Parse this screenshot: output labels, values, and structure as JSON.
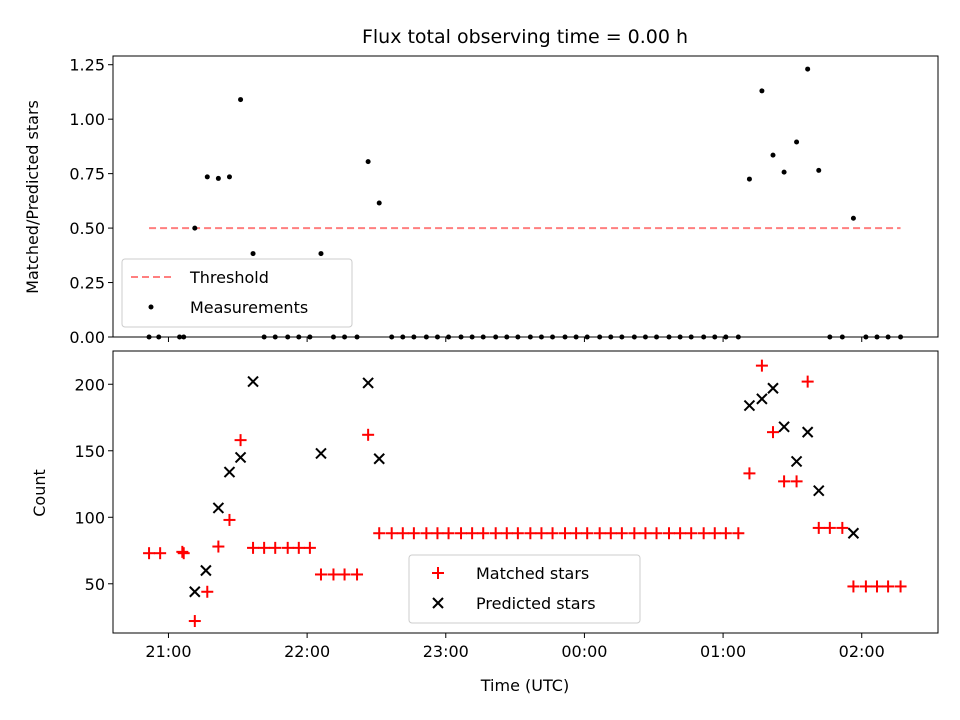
{
  "title": "Flux total observing time = 0.00 h",
  "colors": {
    "threshold": "#ff7f7f",
    "matched": "#ff0000",
    "predicted": "#000000",
    "measurements": "#000000"
  },
  "chart_data": [
    {
      "type": "scatter",
      "ylabel": "Matched/Predicted stars",
      "ylim": [
        0,
        1.29
      ],
      "yticks": [
        "0.00",
        "0.25",
        "0.50",
        "0.75",
        "1.00",
        "1.25"
      ],
      "yticks_values": [
        0,
        0.25,
        0.5,
        0.75,
        1.0,
        1.25
      ],
      "xticks_values": [
        21,
        22,
        23,
        24,
        25,
        26
      ],
      "xlim": [
        20.6,
        26.55
      ],
      "legend": {
        "placement": "lower-left",
        "entries": [
          "Threshold",
          "Measurements"
        ]
      },
      "threshold": {
        "name": "Threshold",
        "value": 0.5,
        "x": [
          20.86,
          26.28
        ]
      },
      "series": [
        {
          "name": "Measurements",
          "x": [
            20.86,
            20.93,
            21.08,
            21.11,
            21.19,
            21.28,
            21.36,
            21.44,
            21.52,
            21.61,
            21.69,
            21.77,
            21.86,
            21.94,
            22.02,
            22.1,
            22.19,
            22.27,
            22.36,
            22.44,
            22.52,
            22.61,
            22.69,
            22.77,
            22.86,
            22.94,
            23.02,
            23.11,
            23.19,
            23.27,
            23.36,
            23.44,
            23.52,
            23.61,
            23.69,
            23.77,
            23.86,
            23.94,
            24.02,
            24.11,
            24.19,
            24.27,
            24.36,
            24.44,
            24.52,
            24.61,
            24.69,
            24.77,
            24.86,
            24.94,
            25.02,
            25.11,
            25.19,
            25.28,
            25.36,
            25.44,
            25.53,
            25.61,
            25.69,
            25.77,
            25.86,
            25.94,
            26.03,
            26.11,
            26.19,
            26.28
          ],
          "y": [
            0.0,
            0.0,
            0.0,
            0.0,
            0.5,
            0.735,
            0.728,
            0.735,
            1.09,
            0.383,
            0.0,
            0.0,
            0.0,
            0.0,
            0.0,
            0.383,
            0.0,
            0.0,
            0.0,
            0.805,
            0.615,
            0.0,
            0.0,
            0.0,
            0.0,
            0.0,
            0.0,
            0.0,
            0.0,
            0.0,
            0.0,
            0.0,
            0.0,
            0.0,
            0.0,
            0.0,
            0.0,
            0.0,
            0.0,
            0.0,
            0.0,
            0.0,
            0.0,
            0.0,
            0.0,
            0.0,
            0.0,
            0.0,
            0.0,
            0.0,
            0.0,
            0.0,
            0.725,
            1.13,
            0.835,
            0.757,
            0.895,
            1.23,
            0.765,
            0.0,
            0.0,
            0.545,
            0.0,
            0.0,
            0.0,
            0.0
          ]
        }
      ]
    },
    {
      "type": "scatter",
      "xlabel": "Time (UTC)",
      "ylabel": "Count",
      "ylim": [
        13,
        225
      ],
      "yticks": [
        "50",
        "100",
        "150",
        "200"
      ],
      "yticks_values": [
        50,
        100,
        150,
        200
      ],
      "xticks": [
        "21:00",
        "22:00",
        "23:00",
        "00:00",
        "01:00",
        "02:00"
      ],
      "xticks_values": [
        21,
        22,
        23,
        24,
        25,
        26
      ],
      "xlim": [
        20.6,
        26.55
      ],
      "legend": {
        "placement": "lower-center",
        "entries": [
          "Matched stars",
          "Predicted stars"
        ]
      },
      "series": [
        {
          "name": "Matched stars",
          "x": [
            20.86,
            20.94,
            21.1,
            21.11,
            21.19,
            21.28,
            21.36,
            21.44,
            21.52,
            21.61,
            21.69,
            21.77,
            21.86,
            21.94,
            22.02,
            22.1,
            22.19,
            22.27,
            22.36,
            22.44,
            22.52,
            22.61,
            22.69,
            22.77,
            22.86,
            22.94,
            23.02,
            23.11,
            23.19,
            23.27,
            23.36,
            23.44,
            23.52,
            23.61,
            23.69,
            23.77,
            23.86,
            23.94,
            24.02,
            24.11,
            24.19,
            24.27,
            24.36,
            24.44,
            24.52,
            24.61,
            24.69,
            24.77,
            24.86,
            24.94,
            25.02,
            25.11,
            25.19,
            25.28,
            25.36,
            25.44,
            25.53,
            25.61,
            25.69,
            25.77,
            25.86,
            25.94,
            26.03,
            26.11,
            26.19,
            26.28
          ],
          "y": [
            73,
            73,
            74,
            73,
            22,
            44,
            78,
            98,
            158,
            77,
            77,
            77,
            77,
            77,
            77,
            57,
            57,
            57,
            57,
            162,
            88,
            88,
            88,
            88,
            88,
            88,
            88,
            88,
            88,
            88,
            88,
            88,
            88,
            88,
            88,
            88,
            88,
            88,
            88,
            88,
            88,
            88,
            88,
            88,
            88,
            88,
            88,
            88,
            88,
            88,
            88,
            88,
            133,
            214,
            164,
            127,
            127,
            202,
            92,
            92,
            92,
            48,
            48,
            48,
            48,
            48
          ]
        },
        {
          "name": "Predicted stars",
          "x": [
            21.19,
            21.27,
            21.36,
            21.44,
            21.52,
            21.61,
            22.1,
            22.44,
            22.52,
            25.19,
            25.28,
            25.36,
            25.44,
            25.53,
            25.61,
            25.69,
            25.94
          ],
          "y": [
            44,
            60,
            107,
            134,
            145,
            202,
            148,
            201,
            144,
            184,
            189,
            197,
            168,
            142,
            164,
            120,
            88
          ]
        }
      ]
    }
  ]
}
